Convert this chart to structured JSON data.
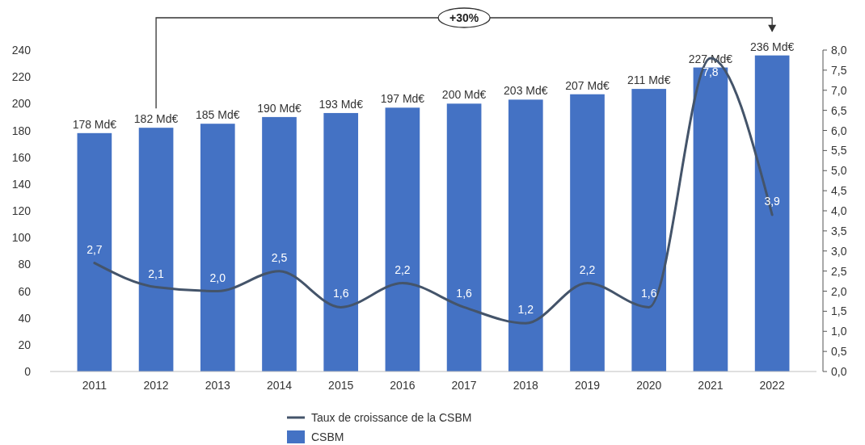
{
  "chart_data": {
    "type": "bar",
    "categories": [
      "2011",
      "2012",
      "2013",
      "2014",
      "2015",
      "2016",
      "2017",
      "2018",
      "2019",
      "2020",
      "2021",
      "2022"
    ],
    "series": [
      {
        "name": "CSBM",
        "color": "#4472c4",
        "values": [
          178,
          182,
          185,
          190,
          193,
          197,
          200,
          203,
          207,
          211,
          227,
          236
        ],
        "value_labels": [
          "178 Md€",
          "182 Md€",
          "185 Md€",
          "190 Md€",
          "193 Md€",
          "197 Md€",
          "200 Md€",
          "203 Md€",
          "207 Md€",
          "211 Md€",
          "227 Md€",
          "236 Md€"
        ]
      },
      {
        "name": "Taux de croissance de la CSBM",
        "type": "line",
        "axis": "y2",
        "color": "#44546a",
        "values": [
          2.7,
          2.1,
          2.0,
          2.5,
          1.6,
          2.2,
          1.6,
          1.2,
          2.2,
          1.6,
          7.8,
          3.9
        ],
        "value_labels": [
          "2,7",
          "2,1",
          "2,0",
          "2,5",
          "1,6",
          "2,2",
          "1,6",
          "1,2",
          "2,2",
          "1,6",
          "7,8",
          "3,9"
        ]
      }
    ],
    "ylim": [
      0,
      240
    ],
    "yticks": [
      0,
      20,
      40,
      60,
      80,
      100,
      120,
      140,
      160,
      180,
      200,
      220,
      240
    ],
    "y2lim": [
      0,
      8
    ],
    "y2ticks": [
      {
        "value": 0,
        "label": "0,0"
      },
      {
        "value": 0.5,
        "label": "0,5"
      },
      {
        "value": 1,
        "label": "1,0"
      },
      {
        "value": 1.5,
        "label": "1,5"
      },
      {
        "value": 2,
        "label": "2,0"
      },
      {
        "value": 2.5,
        "label": "2,5"
      },
      {
        "value": 3,
        "label": "3,0"
      },
      {
        "value": 3.5,
        "label": "3,5"
      },
      {
        "value": 4,
        "label": "4,0"
      },
      {
        "value": 4.5,
        "label": "4,5"
      },
      {
        "value": 5,
        "label": "5,0"
      },
      {
        "value": 5.5,
        "label": "5,5"
      },
      {
        "value": 6,
        "label": "6,0"
      },
      {
        "value": 6.5,
        "label": "6,5"
      },
      {
        "value": 7,
        "label": "7,0"
      },
      {
        "value": 7.5,
        "label": "7,5"
      },
      {
        "value": 8,
        "label": "8,0"
      }
    ],
    "annotations": [
      "+30%"
    ],
    "legend": "bottom"
  }
}
